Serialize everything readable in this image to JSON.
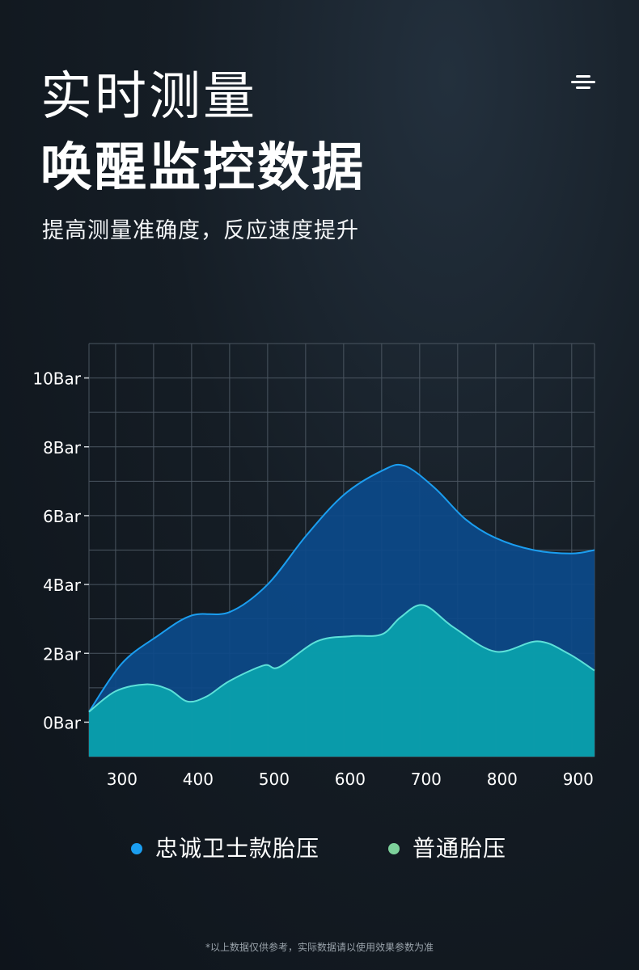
{
  "header": {
    "title_line1": "实时测量",
    "title_line2": "唤醒监控数据",
    "subtitle": "提高测量准确度，反应速度提升",
    "menu_icon": "menu-lines-icon"
  },
  "chart_data": {
    "type": "area",
    "xlim": [
      265,
      930
    ],
    "ylim": [
      -1,
      11
    ],
    "x_ticks": [
      300,
      400,
      500,
      600,
      700,
      800,
      900
    ],
    "y_ticks": [
      0,
      2,
      4,
      6,
      8,
      10
    ],
    "y_tick_labels": [
      "0Bar",
      "2Bar",
      "4Bar",
      "6Bar",
      "8Bar",
      "10Bar"
    ],
    "grid": true,
    "legend_position": "bottom",
    "series": [
      {
        "name": "忠诚卫士款胎压",
        "color": "#1b9ef0",
        "fill": "#0c4a8a",
        "x": [
          265,
          308,
          355,
          400,
          450,
          500,
          550,
          600,
          650,
          680,
          720,
          760,
          800,
          850,
          900,
          930
        ],
        "values": [
          0.3,
          1.7,
          2.5,
          3.1,
          3.2,
          4.0,
          5.4,
          6.6,
          7.3,
          7.45,
          6.8,
          5.9,
          5.35,
          5.0,
          4.9,
          5.0
        ]
      },
      {
        "name": "普通胎压",
        "color": "#5de0d9",
        "fill": "#0aa1ad",
        "x": [
          265,
          300,
          340,
          370,
          395,
          420,
          450,
          495,
          515,
          565,
          610,
          650,
          675,
          705,
          745,
          800,
          855,
          895,
          930
        ],
        "values": [
          0.3,
          0.9,
          1.1,
          0.95,
          0.6,
          0.75,
          1.2,
          1.65,
          1.6,
          2.35,
          2.5,
          2.55,
          3.05,
          3.4,
          2.75,
          2.05,
          2.35,
          2.0,
          1.5
        ]
      }
    ]
  },
  "legend": {
    "items": [
      {
        "label": "忠诚卫士款胎压",
        "color": "#1b9ef0"
      },
      {
        "label": "普通胎压",
        "color": "#7dd19b"
      }
    ]
  },
  "footnote": "*以上数据仅供参考，实际数据请以使用效果参数为准"
}
